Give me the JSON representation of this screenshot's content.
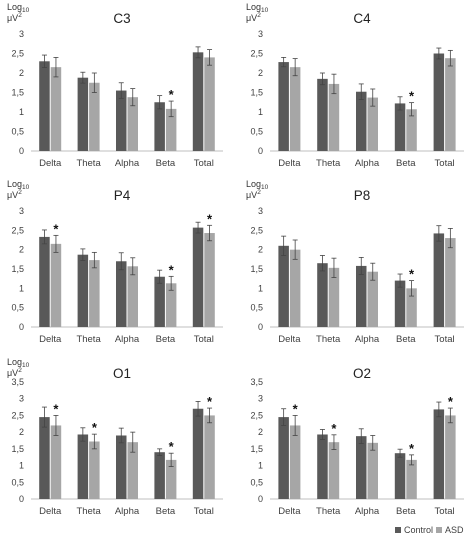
{
  "legend": [
    {
      "name": "Control",
      "color": "#595959"
    },
    {
      "name": "ASD",
      "color": "#a6a6a6"
    }
  ],
  "chart_data": [
    {
      "type": "bar",
      "title": "C3",
      "ylabel_main": "Log",
      "ylabel_sub": "10",
      "ylabel_unit": "μV",
      "ylabel_sup": "2",
      "categories": [
        "Delta",
        "Theta",
        "Alpha",
        "Beta",
        "Total"
      ],
      "ylim": [
        0,
        3
      ],
      "yticks": [
        "0",
        "0,5",
        "1",
        "1,5",
        "2",
        "2,5",
        "3"
      ],
      "grid": false,
      "series": [
        {
          "name": "Control",
          "values": [
            2.3,
            1.88,
            1.55,
            1.25,
            2.53
          ],
          "errors": [
            0.16,
            0.14,
            0.2,
            0.17,
            0.14
          ]
        },
        {
          "name": "ASD",
          "values": [
            2.15,
            1.75,
            1.38,
            1.08,
            2.4
          ],
          "errors": [
            0.25,
            0.25,
            0.22,
            0.2,
            0.2
          ]
        }
      ],
      "significance": [
        false,
        false,
        false,
        true,
        false
      ]
    },
    {
      "type": "bar",
      "title": "C4",
      "ylabel_main": "Log",
      "ylabel_sub": "10",
      "ylabel_unit": "μV",
      "ylabel_sup": "2",
      "categories": [
        "Delta",
        "Theta",
        "Alpha",
        "Beta",
        "Total"
      ],
      "ylim": [
        0,
        3
      ],
      "yticks": [
        "0",
        "0,5",
        "1",
        "1,5",
        "2",
        "2,5",
        "3"
      ],
      "grid": false,
      "series": [
        {
          "name": "Control",
          "values": [
            2.28,
            1.85,
            1.52,
            1.22,
            2.5
          ],
          "errors": [
            0.12,
            0.15,
            0.2,
            0.17,
            0.14
          ]
        },
        {
          "name": "ASD",
          "values": [
            2.15,
            1.72,
            1.37,
            1.07,
            2.38
          ],
          "errors": [
            0.22,
            0.25,
            0.22,
            0.17,
            0.2
          ]
        }
      ],
      "significance": [
        false,
        false,
        false,
        true,
        false
      ]
    },
    {
      "type": "bar",
      "title": "P4",
      "ylabel_main": "Log",
      "ylabel_sub": "10",
      "ylabel_unit": "μV",
      "ylabel_sup": "2",
      "categories": [
        "Delta",
        "Theta",
        "Alpha",
        "Beta",
        "Total"
      ],
      "ylim": [
        0,
        3
      ],
      "yticks": [
        "0",
        "0,5",
        "1",
        "1,5",
        "2",
        "2,5",
        "3"
      ],
      "grid": false,
      "series": [
        {
          "name": "Control",
          "values": [
            2.33,
            1.87,
            1.7,
            1.3,
            2.57
          ],
          "errors": [
            0.18,
            0.15,
            0.22,
            0.17,
            0.14
          ]
        },
        {
          "name": "ASD",
          "values": [
            2.15,
            1.73,
            1.57,
            1.13,
            2.43
          ],
          "errors": [
            0.22,
            0.2,
            0.22,
            0.18,
            0.2
          ]
        }
      ],
      "significance": [
        true,
        false,
        false,
        true,
        true
      ]
    },
    {
      "type": "bar",
      "title": "P8",
      "ylabel_main": "Log",
      "ylabel_sub": "10",
      "ylabel_unit": "μV",
      "ylabel_sup": "2",
      "categories": [
        "Delta",
        "Theta",
        "Alpha",
        "Beta",
        "Total"
      ],
      "ylim": [
        0,
        3
      ],
      "yticks": [
        "0",
        "0,5",
        "1",
        "1,5",
        "2",
        "2,5",
        "3"
      ],
      "grid": false,
      "series": [
        {
          "name": "Control",
          "values": [
            2.1,
            1.65,
            1.58,
            1.2,
            2.42
          ],
          "errors": [
            0.25,
            0.2,
            0.22,
            0.17,
            0.2
          ]
        },
        {
          "name": "ASD",
          "values": [
            2.0,
            1.53,
            1.43,
            1.0,
            2.3
          ],
          "errors": [
            0.25,
            0.25,
            0.22,
            0.2,
            0.25
          ]
        }
      ],
      "significance": [
        false,
        false,
        false,
        true,
        false
      ]
    },
    {
      "type": "bar",
      "title": "O1",
      "ylabel_main": "Log",
      "ylabel_sub": "10",
      "ylabel_unit": "μV",
      "ylabel_sup": "2",
      "categories": [
        "Delta",
        "Theta",
        "Alpha",
        "Beta",
        "Total"
      ],
      "ylim": [
        0,
        3.5
      ],
      "yticks": [
        "0",
        "0,5",
        "1",
        "1,5",
        "2",
        "2,5",
        "3",
        "3,5"
      ],
      "grid": false,
      "series": [
        {
          "name": "Control",
          "values": [
            2.45,
            1.93,
            1.9,
            1.4,
            2.7
          ],
          "errors": [
            0.3,
            0.2,
            0.22,
            0.1,
            0.22
          ]
        },
        {
          "name": "ASD",
          "values": [
            2.2,
            1.72,
            1.7,
            1.17,
            2.5
          ],
          "errors": [
            0.3,
            0.22,
            0.3,
            0.2,
            0.22
          ]
        }
      ],
      "significance": [
        true,
        true,
        false,
        true,
        true
      ]
    },
    {
      "type": "bar",
      "title": "O2",
      "ylabel_main": "",
      "ylabel_sub": "",
      "ylabel_unit": "",
      "ylabel_sup": "",
      "categories": [
        "Delta",
        "Theta",
        "Alpha",
        "Beta",
        "Total"
      ],
      "ylim": [
        0,
        3.5
      ],
      "yticks": [
        "0",
        "0,5",
        "1",
        "1,5",
        "2",
        "2,5",
        "3",
        "3,5"
      ],
      "grid": false,
      "series": [
        {
          "name": "Control",
          "values": [
            2.45,
            1.93,
            1.88,
            1.37,
            2.68
          ],
          "errors": [
            0.25,
            0.15,
            0.22,
            0.12,
            0.22
          ]
        },
        {
          "name": "ASD",
          "values": [
            2.2,
            1.7,
            1.68,
            1.17,
            2.5
          ],
          "errors": [
            0.3,
            0.22,
            0.22,
            0.15,
            0.22
          ]
        }
      ],
      "significance": [
        true,
        true,
        false,
        true,
        true
      ]
    }
  ]
}
